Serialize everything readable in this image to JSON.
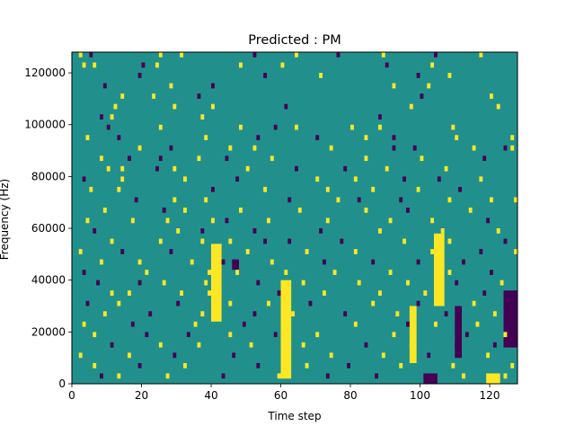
{
  "chart_data": {
    "type": "heatmap",
    "title": "Predicted : PM",
    "xlabel": "Time step",
    "ylabel": "Frequency (Hz)",
    "xlim": [
      0,
      128
    ],
    "ylim": [
      0,
      128000
    ],
    "x_ticks": [
      0,
      20,
      40,
      60,
      80,
      100,
      120
    ],
    "y_ticks": [
      0,
      20000,
      40000,
      60000,
      80000,
      100000,
      120000
    ],
    "x_tick_labels": [
      "0",
      "20",
      "40",
      "60",
      "80",
      "100",
      "120"
    ],
    "y_tick_labels": [
      "0",
      "20000",
      "40000",
      "60000",
      "80000",
      "100000",
      "120000"
    ],
    "grid": false,
    "legend": "none",
    "cell_time_width": 1,
    "cell_freq_height": 2000,
    "colors": {
      "background_value": "#21908d",
      "low_value": "#440154",
      "high_value": "#fde725"
    },
    "values_note_legend": {
      "low": -1,
      "background": 0,
      "high": 1
    },
    "cells": [
      [
        2,
        126000,
        1
      ],
      [
        5,
        126000,
        -1
      ],
      [
        25,
        126000,
        1
      ],
      [
        31,
        126000,
        1
      ],
      [
        52,
        126000,
        -1
      ],
      [
        64,
        126000,
        1
      ],
      [
        76,
        126000,
        -1
      ],
      [
        89,
        126000,
        1
      ],
      [
        104,
        126000,
        -1
      ],
      [
        117,
        126000,
        1
      ],
      [
        3,
        122000,
        1
      ],
      [
        6,
        122000,
        1
      ],
      [
        20,
        122000,
        -1
      ],
      [
        24,
        122000,
        1
      ],
      [
        48,
        122000,
        1
      ],
      [
        60,
        122000,
        1
      ],
      [
        90,
        122000,
        -1
      ],
      [
        103,
        122000,
        1
      ],
      [
        19,
        118000,
        -1
      ],
      [
        55,
        118000,
        -1
      ],
      [
        71,
        118000,
        1
      ],
      [
        99,
        118000,
        -1
      ],
      [
        108,
        118000,
        1
      ],
      [
        9,
        114000,
        -1
      ],
      [
        28,
        114000,
        1
      ],
      [
        40,
        114000,
        -1
      ],
      [
        92,
        114000,
        1
      ],
      [
        102,
        114000,
        1
      ],
      [
        14,
        110000,
        1
      ],
      [
        23,
        110000,
        1
      ],
      [
        36,
        110000,
        -1
      ],
      [
        100,
        110000,
        -1
      ],
      [
        120,
        110000,
        1
      ],
      [
        12,
        106000,
        1
      ],
      [
        29,
        106000,
        1
      ],
      [
        40,
        106000,
        1
      ],
      [
        61,
        106000,
        -1
      ],
      [
        97,
        106000,
        1
      ],
      [
        122,
        106000,
        1
      ],
      [
        8,
        102000,
        -1
      ],
      [
        11,
        102000,
        1
      ],
      [
        37,
        102000,
        1
      ],
      [
        88,
        102000,
        -1
      ],
      [
        10,
        98000,
        -1
      ],
      [
        25,
        98000,
        1
      ],
      [
        48,
        98000,
        1
      ],
      [
        58,
        98000,
        -1
      ],
      [
        64,
        98000,
        1
      ],
      [
        80,
        98000,
        1
      ],
      [
        88,
        98000,
        1
      ],
      [
        109,
        98000,
        1
      ],
      [
        4,
        94000,
        1
      ],
      [
        13,
        94000,
        -1
      ],
      [
        38,
        94000,
        1
      ],
      [
        53,
        94000,
        -1
      ],
      [
        70,
        94000,
        -1
      ],
      [
        84,
        94000,
        1
      ],
      [
        92,
        94000,
        -1
      ],
      [
        110,
        94000,
        1
      ],
      [
        126,
        94000,
        1
      ],
      [
        19,
        90000,
        1
      ],
      [
        28,
        90000,
        -1
      ],
      [
        45,
        90000,
        1
      ],
      [
        52,
        90000,
        1
      ],
      [
        74,
        90000,
        1
      ],
      [
        92,
        90000,
        -1
      ],
      [
        98,
        90000,
        -1
      ],
      [
        115,
        90000,
        1
      ],
      [
        124,
        90000,
        -1
      ],
      [
        126,
        90000,
        1
      ],
      [
        8,
        86000,
        1
      ],
      [
        16,
        86000,
        -1
      ],
      [
        25,
        86000,
        -1
      ],
      [
        36,
        86000,
        1
      ],
      [
        44,
        86000,
        -1
      ],
      [
        57,
        86000,
        1
      ],
      [
        84,
        86000,
        1
      ],
      [
        100,
        86000,
        1
      ],
      [
        118,
        86000,
        -1
      ],
      [
        10,
        82000,
        1
      ],
      [
        14,
        82000,
        1
      ],
      [
        24,
        82000,
        -1
      ],
      [
        29,
        82000,
        1
      ],
      [
        50,
        82000,
        1
      ],
      [
        64,
        82000,
        -1
      ],
      [
        78,
        82000,
        -1
      ],
      [
        90,
        82000,
        1
      ],
      [
        107,
        82000,
        1
      ],
      [
        14,
        78000,
        1
      ],
      [
        3,
        78000,
        -1
      ],
      [
        32,
        78000,
        1
      ],
      [
        47,
        78000,
        -1
      ],
      [
        70,
        78000,
        1
      ],
      [
        81,
        78000,
        1
      ],
      [
        95,
        78000,
        -1
      ],
      [
        105,
        78000,
        -1
      ],
      [
        117,
        78000,
        1
      ],
      [
        5,
        74000,
        1
      ],
      [
        13,
        74000,
        1
      ],
      [
        40,
        74000,
        -1
      ],
      [
        55,
        74000,
        1
      ],
      [
        73,
        74000,
        1
      ],
      [
        86,
        74000,
        1
      ],
      [
        99,
        74000,
        1
      ],
      [
        111,
        74000,
        -1
      ],
      [
        18,
        70000,
        -1
      ],
      [
        29,
        70000,
        1
      ],
      [
        38,
        70000,
        1
      ],
      [
        62,
        70000,
        -1
      ],
      [
        76,
        70000,
        1
      ],
      [
        82,
        70000,
        -1
      ],
      [
        94,
        70000,
        -1
      ],
      [
        108,
        70000,
        1
      ],
      [
        120,
        70000,
        1
      ],
      [
        127,
        70000,
        1
      ],
      [
        9,
        66000,
        1
      ],
      [
        26,
        66000,
        -1
      ],
      [
        32,
        66000,
        1
      ],
      [
        48,
        66000,
        1
      ],
      [
        65,
        66000,
        1
      ],
      [
        84,
        66000,
        1
      ],
      [
        96,
        66000,
        -1
      ],
      [
        114,
        66000,
        1
      ],
      [
        4,
        62000,
        1
      ],
      [
        17,
        62000,
        1
      ],
      [
        27,
        62000,
        1
      ],
      [
        40,
        62000,
        1
      ],
      [
        44,
        62000,
        -1
      ],
      [
        56,
        62000,
        1
      ],
      [
        73,
        62000,
        1
      ],
      [
        91,
        62000,
        1
      ],
      [
        103,
        62000,
        1
      ],
      [
        119,
        62000,
        -1
      ],
      [
        6,
        58000,
        -1
      ],
      [
        30,
        58000,
        1
      ],
      [
        37,
        58000,
        -1
      ],
      [
        52,
        58000,
        -1
      ],
      [
        71,
        58000,
        -1
      ],
      [
        88,
        58000,
        1
      ],
      [
        106,
        58000,
        1
      ],
      [
        122,
        58000,
        1
      ],
      [
        11,
        54000,
        1
      ],
      [
        25,
        54000,
        1
      ],
      [
        37,
        54000,
        1
      ],
      [
        45,
        54000,
        1
      ],
      [
        55,
        54000,
        -1
      ],
      [
        62,
        54000,
        -1
      ],
      [
        77,
        54000,
        -1
      ],
      [
        95,
        54000,
        1
      ],
      [
        108,
        54000,
        1
      ],
      [
        124,
        54000,
        -1
      ],
      [
        2,
        50000,
        1
      ],
      [
        14,
        50000,
        -1
      ],
      [
        28,
        50000,
        -1
      ],
      [
        40,
        50000,
        1
      ],
      [
        50,
        50000,
        1
      ],
      [
        67,
        50000,
        1
      ],
      [
        81,
        50000,
        1
      ],
      [
        103,
        50000,
        1
      ],
      [
        117,
        50000,
        -1
      ],
      [
        127,
        50000,
        1
      ],
      [
        8,
        46000,
        1
      ],
      [
        19,
        46000,
        1
      ],
      [
        34,
        46000,
        1
      ],
      [
        43,
        46000,
        -1
      ],
      [
        57,
        46000,
        1
      ],
      [
        72,
        46000,
        -1
      ],
      [
        86,
        46000,
        -1
      ],
      [
        99,
        46000,
        -1
      ],
      [
        112,
        46000,
        -1
      ],
      [
        3,
        42000,
        -1
      ],
      [
        21,
        42000,
        1
      ],
      [
        39,
        42000,
        1
      ],
      [
        47,
        42000,
        1
      ],
      [
        61,
        42000,
        1
      ],
      [
        75,
        42000,
        1
      ],
      [
        91,
        42000,
        1
      ],
      [
        108,
        42000,
        1
      ],
      [
        120,
        42000,
        -1
      ],
      [
        7,
        38000,
        -1
      ],
      [
        19,
        38000,
        -1
      ],
      [
        26,
        38000,
        1
      ],
      [
        38,
        38000,
        1
      ],
      [
        53,
        38000,
        -1
      ],
      [
        66,
        38000,
        1
      ],
      [
        82,
        38000,
        1
      ],
      [
        96,
        38000,
        1
      ],
      [
        110,
        38000,
        -1
      ],
      [
        123,
        38000,
        1
      ],
      [
        11,
        34000,
        1
      ],
      [
        16,
        34000,
        1
      ],
      [
        31,
        34000,
        1
      ],
      [
        39,
        34000,
        1
      ],
      [
        59,
        34000,
        -1
      ],
      [
        72,
        34000,
        1
      ],
      [
        88,
        34000,
        1
      ],
      [
        101,
        34000,
        1
      ],
      [
        118,
        34000,
        -1
      ],
      [
        127,
        34000,
        -1
      ],
      [
        4,
        30000,
        -1
      ],
      [
        13,
        30000,
        1
      ],
      [
        30,
        30000,
        -1
      ],
      [
        45,
        30000,
        1
      ],
      [
        56,
        30000,
        1
      ],
      [
        68,
        30000,
        -1
      ],
      [
        86,
        30000,
        1
      ],
      [
        99,
        30000,
        -1
      ],
      [
        115,
        30000,
        1
      ],
      [
        9,
        26000,
        1
      ],
      [
        22,
        26000,
        -1
      ],
      [
        37,
        26000,
        1
      ],
      [
        52,
        26000,
        -1
      ],
      [
        63,
        26000,
        1
      ],
      [
        78,
        26000,
        -1
      ],
      [
        93,
        26000,
        1
      ],
      [
        107,
        26000,
        -1
      ],
      [
        121,
        26000,
        1
      ],
      [
        3,
        22000,
        1
      ],
      [
        17,
        22000,
        -1
      ],
      [
        35,
        22000,
        1
      ],
      [
        49,
        22000,
        -1
      ],
      [
        61,
        22000,
        1
      ],
      [
        81,
        22000,
        1
      ],
      [
        96,
        22000,
        -1
      ],
      [
        104,
        22000,
        1
      ],
      [
        116,
        22000,
        1
      ],
      [
        127,
        22000,
        -1
      ],
      [
        6,
        18000,
        1
      ],
      [
        21,
        18000,
        -1
      ],
      [
        33,
        18000,
        -1
      ],
      [
        45,
        18000,
        1
      ],
      [
        58,
        18000,
        -1
      ],
      [
        70,
        18000,
        1
      ],
      [
        92,
        18000,
        1
      ],
      [
        113,
        18000,
        -1
      ],
      [
        124,
        18000,
        1
      ],
      [
        11,
        14000,
        -1
      ],
      [
        25,
        14000,
        1
      ],
      [
        36,
        14000,
        1
      ],
      [
        51,
        14000,
        1
      ],
      [
        66,
        14000,
        1
      ],
      [
        84,
        14000,
        -1
      ],
      [
        97,
        14000,
        1
      ],
      [
        110,
        14000,
        -1
      ],
      [
        121,
        14000,
        -1
      ],
      [
        2,
        10000,
        1
      ],
      [
        16,
        10000,
        1
      ],
      [
        29,
        10000,
        -1
      ],
      [
        46,
        10000,
        -1
      ],
      [
        60,
        10000,
        1
      ],
      [
        74,
        10000,
        1
      ],
      [
        89,
        10000,
        1
      ],
      [
        102,
        10000,
        -1
      ],
      [
        119,
        10000,
        1
      ],
      [
        6,
        6000,
        1
      ],
      [
        19,
        6000,
        -1
      ],
      [
        32,
        6000,
        1
      ],
      [
        53,
        6000,
        -1
      ],
      [
        67,
        6000,
        1
      ],
      [
        79,
        6000,
        -1
      ],
      [
        94,
        6000,
        1
      ],
      [
        109,
        6000,
        1
      ],
      [
        126,
        6000,
        1
      ],
      [
        8,
        2000,
        -1
      ],
      [
        13,
        2000,
        1
      ],
      [
        27,
        2000,
        1
      ],
      [
        43,
        2000,
        -1
      ],
      [
        59,
        2000,
        1
      ],
      [
        73,
        2000,
        -1
      ],
      [
        87,
        2000,
        -1
      ],
      [
        101,
        2000,
        -1
      ],
      [
        112,
        2000,
        1
      ],
      [
        124,
        2000,
        1
      ]
    ],
    "blocks": [
      {
        "x0": 40,
        "x1": 43,
        "y0": 24000,
        "y1": 54000,
        "value": 1
      },
      {
        "x0": 46,
        "x1": 48,
        "y0": 44000,
        "y1": 48000,
        "value": -1
      },
      {
        "x0": 60,
        "x1": 63,
        "y0": 2000,
        "y1": 40000,
        "value": 1
      },
      {
        "x0": 97,
        "x1": 99,
        "y0": 8000,
        "y1": 30000,
        "value": 1
      },
      {
        "x0": 104,
        "x1": 107,
        "y0": 30000,
        "y1": 58000,
        "value": 1
      },
      {
        "x0": 101,
        "x1": 105,
        "y0": 0,
        "y1": 4000,
        "value": -1
      },
      {
        "x0": 110,
        "x1": 112,
        "y0": 10000,
        "y1": 30000,
        "value": -1
      },
      {
        "x0": 119,
        "x1": 123,
        "y0": 0,
        "y1": 4000,
        "value": 1
      },
      {
        "x0": 124,
        "x1": 128,
        "y0": 14000,
        "y1": 36000,
        "value": -1
      }
    ]
  }
}
